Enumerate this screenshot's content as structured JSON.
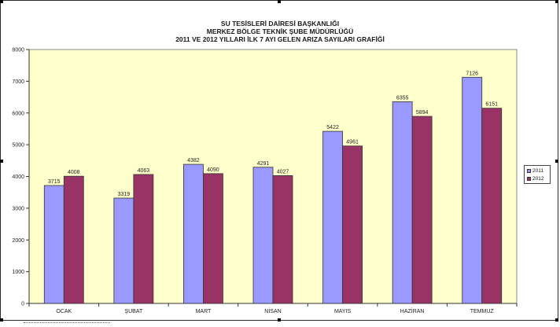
{
  "chart_data": {
    "type": "bar",
    "title_lines": [
      "SU TESİSLERİ DAİRESİ BAŞKANLIĞI",
      "MERKEZ BÖLGE TEKNİK ŞUBE MÜDÜRLÜĞÜ",
      "2011 VE 2012  YILLARI İLK 7 AYI GELEN ARIZA SAYILARI GRAFİĞİ"
    ],
    "categories": [
      "OCAK",
      "ŞUBAT",
      "MART",
      "NİSAN",
      "MAYIS",
      "HAZİRAN",
      "TEMMUZ"
    ],
    "series": [
      {
        "name": "2011",
        "values": [
          3715,
          3319,
          4382,
          4291,
          5422,
          6355,
          7126
        ],
        "color": "#9999ff"
      },
      {
        "name": "2012",
        "values": [
          4008,
          4063,
          4090,
          4027,
          4961,
          5894,
          6151
        ],
        "color": "#993366"
      }
    ],
    "ylim": [
      0,
      8000
    ],
    "yticks": [
      "0",
      "1000",
      "2000",
      "3000",
      "4000",
      "5000",
      "6000",
      "7000",
      "8000"
    ],
    "grid": false,
    "legend_position": "right",
    "plot_background": "#ffffcc",
    "data_labels": true
  }
}
